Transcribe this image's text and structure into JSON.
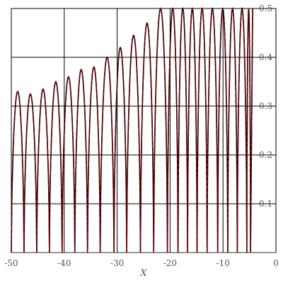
{
  "chart_data": {
    "type": "line",
    "title": "",
    "xlabel": "X",
    "ylabel": "",
    "xlim": [
      -50,
      0
    ],
    "ylim": [
      0,
      0.5
    ],
    "grid": true,
    "y_axis_side": "right",
    "x_ticks": [
      {
        "value": -50,
        "label": "-50"
      },
      {
        "value": -40,
        "label": "-40"
      },
      {
        "value": -30,
        "label": "-30"
      },
      {
        "value": -20,
        "label": "-20"
      },
      {
        "value": -10,
        "label": "-10"
      },
      {
        "value": 0,
        "label": "0"
      }
    ],
    "y_ticks": [
      {
        "value": 0.1,
        "label": "0.1"
      },
      {
        "value": 0.2,
        "label": "0.2"
      },
      {
        "value": 0.3,
        "label": "0.3"
      },
      {
        "value": 0.4,
        "label": "0.4"
      },
      {
        "value": 0.5,
        "label": "0.5"
      }
    ],
    "series": [
      {
        "color": "#7a0000",
        "style": "dashed-over-solid",
        "description": "oscillating function with lobes whose peaks rise toward x=0; zeros approximately at listed x values; curve is clipped at y=0.5",
        "zeros": [
          -50,
          -47.6,
          -45.2,
          -42.8,
          -40.4,
          -38.0,
          -35.6,
          -33.2,
          -30.6,
          -28.2,
          -25.6,
          -23.1,
          -20.5,
          -18.5,
          -16.7,
          -14.9,
          -13.0,
          -11.0,
          -9.1,
          -7.3,
          -5.5,
          -4.8
        ],
        "peaks": [
          0.165,
          0.325,
          0.335,
          0.35,
          0.36,
          0.375,
          0.38,
          0.4,
          0.42,
          0.445,
          0.47,
          0.5,
          0.5,
          0.5,
          0.5,
          0.5,
          0.5,
          0.5,
          0.5,
          0.5,
          0.5
        ]
      }
    ]
  }
}
